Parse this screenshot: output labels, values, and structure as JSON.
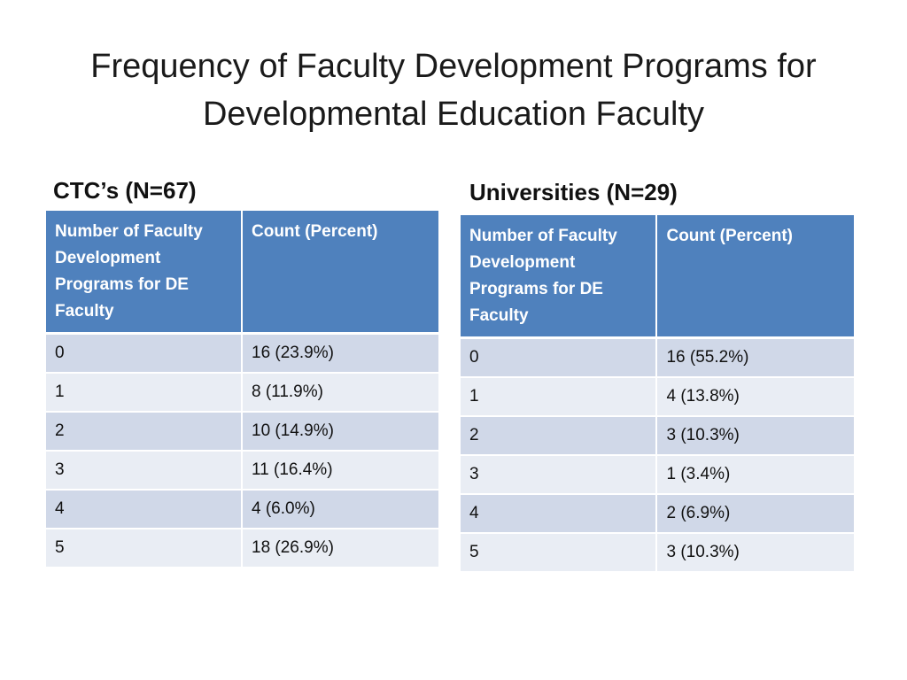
{
  "title": {
    "line1": "Frequency of Faculty Development Programs for",
    "line2": "Developmental Education Faculty"
  },
  "ctc": {
    "heading": "CTC’s (N=67)",
    "columns": [
      "Number of Faculty Development Programs for DE Faculty",
      "Count (Percent)"
    ],
    "rows": [
      [
        "0",
        "16 (23.9%)"
      ],
      [
        "1",
        "8 (11.9%)"
      ],
      [
        "2",
        "10 (14.9%)"
      ],
      [
        "3",
        "11 (16.4%)"
      ],
      [
        "4",
        "4 (6.0%)"
      ],
      [
        "5",
        "18 (26.9%)"
      ]
    ]
  },
  "universities": {
    "heading": "Universities (N=29)",
    "columns": [
      "Number of Faculty Development Programs for DE Faculty",
      "Count (Percent)"
    ],
    "rows": [
      [
        "0",
        "16 (55.2%)"
      ],
      [
        "1",
        "4 (13.8%)"
      ],
      [
        "2",
        "3 (10.3%)"
      ],
      [
        "3",
        "1 (3.4%)"
      ],
      [
        "4",
        "2 (6.9%)"
      ],
      [
        "5",
        "3 (10.3%)"
      ]
    ]
  },
  "colors": {
    "header_bg": "#4f81bd",
    "row_odd_bg": "#d0d8e8",
    "row_even_bg": "#e9edf4"
  }
}
